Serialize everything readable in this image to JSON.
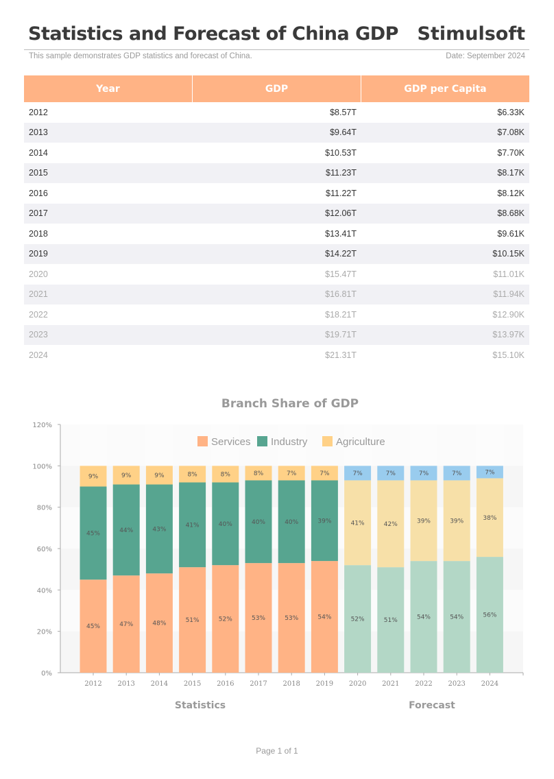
{
  "header": {
    "title": "Statistics and Forecast of China GDP",
    "brand": "Stimulsoft",
    "subtitle": "This sample demonstrates GDP statistics and forecast of China.",
    "date": "Date: September 2024"
  },
  "table": {
    "columns": [
      "Year",
      "GDP",
      "GDP per Capita"
    ],
    "rows": [
      {
        "year": "2012",
        "gdp": "$8.57T",
        "per_capita": "$6.33K",
        "forecast": false
      },
      {
        "year": "2013",
        "gdp": "$9.64T",
        "per_capita": "$7.08K",
        "forecast": false
      },
      {
        "year": "2014",
        "gdp": "$10.53T",
        "per_capita": "$7.70K",
        "forecast": false
      },
      {
        "year": "2015",
        "gdp": "$11.23T",
        "per_capita": "$8.17K",
        "forecast": false
      },
      {
        "year": "2016",
        "gdp": "$11.22T",
        "per_capita": "$8.12K",
        "forecast": false
      },
      {
        "year": "2017",
        "gdp": "$12.06T",
        "per_capita": "$8.68K",
        "forecast": false
      },
      {
        "year": "2018",
        "gdp": "$13.41T",
        "per_capita": "$9.61K",
        "forecast": false
      },
      {
        "year": "2019",
        "gdp": "$14.22T",
        "per_capita": "$10.15K",
        "forecast": false
      },
      {
        "year": "2020",
        "gdp": "$15.47T",
        "per_capita": "$11.01K",
        "forecast": true
      },
      {
        "year": "2021",
        "gdp": "$16.81T",
        "per_capita": "$11.94K",
        "forecast": true
      },
      {
        "year": "2022",
        "gdp": "$18.21T",
        "per_capita": "$12.90K",
        "forecast": true
      },
      {
        "year": "2023",
        "gdp": "$19.71T",
        "per_capita": "$13.97K",
        "forecast": true
      },
      {
        "year": "2024",
        "gdp": "$21.31T",
        "per_capita": "$15.10K",
        "forecast": true
      }
    ]
  },
  "chart_data": {
    "type": "bar",
    "stacked": true,
    "title": "Branch Share of GDP",
    "categories": [
      "2012",
      "2013",
      "2014",
      "2015",
      "2016",
      "2017",
      "2018",
      "2019",
      "2020",
      "2021",
      "2022",
      "2023",
      "2024"
    ],
    "series": [
      {
        "name": "Services",
        "values": [
          45,
          47,
          48,
          51,
          52,
          53,
          53,
          54,
          52,
          51,
          54,
          54,
          56
        ]
      },
      {
        "name": "Industry",
        "values": [
          45,
          44,
          43,
          41,
          40,
          40,
          40,
          39,
          41,
          42,
          39,
          39,
          38
        ]
      },
      {
        "name": "Agriculture",
        "values": [
          9,
          9,
          9,
          8,
          8,
          8,
          7,
          7,
          7,
          7,
          7,
          7,
          7
        ]
      }
    ],
    "forecast_from": "2020",
    "colors": {
      "stat": [
        "#ffb385",
        "#57a590",
        "#ffd187"
      ],
      "forecast": [
        "#b3d7c6",
        "#f7e0a8",
        "#99ccee"
      ]
    },
    "yticks": [
      "0%",
      "20%",
      "40%",
      "60%",
      "80%",
      "100%",
      "120%"
    ],
    "ylim": [
      0,
      120
    ],
    "legend": "top-center",
    "group_labels": [
      "Statistics",
      "Forecast"
    ]
  },
  "footer": {
    "page": "Page 1 of 1"
  }
}
